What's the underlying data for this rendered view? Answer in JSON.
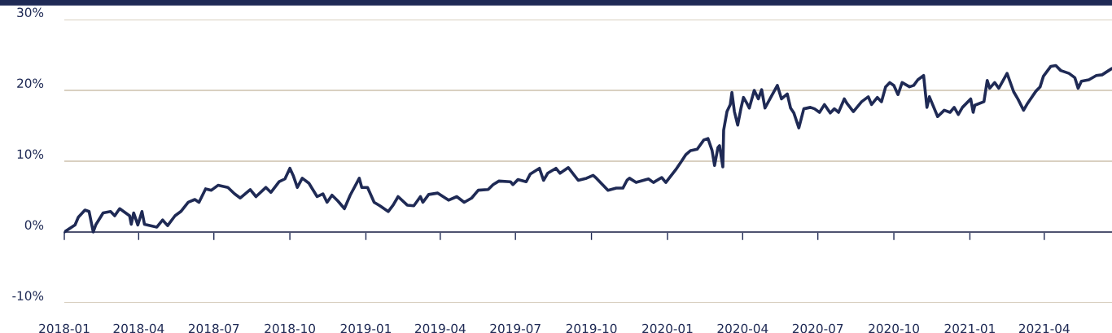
{
  "chart_data": {
    "type": "line",
    "x": [
      "2018-01-01",
      "2018-01-14",
      "2018-01-18",
      "2018-01-26",
      "2018-01-31",
      "2018-02-05",
      "2018-02-08",
      "2018-02-17",
      "2018-02-26",
      "2018-03-03",
      "2018-03-09",
      "2018-03-21",
      "2018-03-23",
      "2018-03-26",
      "2018-03-31",
      "2018-04-05",
      "2018-04-08",
      "2018-04-23",
      "2018-04-30",
      "2018-05-06",
      "2018-05-15",
      "2018-05-22",
      "2018-05-31",
      "2018-06-08",
      "2018-06-13",
      "2018-06-21",
      "2018-06-28",
      "2018-07-06",
      "2018-07-18",
      "2018-07-26",
      "2018-08-02",
      "2018-08-07",
      "2018-08-14",
      "2018-08-21",
      "2018-09-02",
      "2018-09-08",
      "2018-09-18",
      "2018-09-25",
      "2018-10-01",
      "2018-10-05",
      "2018-10-10",
      "2018-10-16",
      "2018-10-24",
      "2018-11-03",
      "2018-11-10",
      "2018-11-15",
      "2018-11-21",
      "2018-11-28",
      "2018-12-06",
      "2018-12-13",
      "2018-12-24",
      "2018-12-27",
      "2019-01-03",
      "2019-01-11",
      "2019-01-18",
      "2019-01-28",
      "2019-02-03",
      "2019-02-09",
      "2019-02-20",
      "2019-02-28",
      "2019-03-08",
      "2019-03-11",
      "2019-03-18",
      "2019-03-29",
      "2019-04-11",
      "2019-04-21",
      "2019-04-30",
      "2019-05-09",
      "2019-05-17",
      "2019-05-29",
      "2019-06-04",
      "2019-06-11",
      "2019-06-25",
      "2019-06-28",
      "2019-07-04",
      "2019-07-14",
      "2019-07-19",
      "2019-07-30",
      "2019-08-04",
      "2019-08-09",
      "2019-08-19",
      "2019-08-24",
      "2019-09-03",
      "2019-09-15",
      "2019-09-25",
      "2019-10-03",
      "2019-10-07",
      "2019-10-21",
      "2019-10-31",
      "2019-11-08",
      "2019-11-13",
      "2019-11-16",
      "2019-11-24",
      "2019-12-09",
      "2019-12-15",
      "2019-12-25",
      "2019-12-30",
      "2020-01-11",
      "2020-01-18",
      "2020-01-23",
      "2020-01-29",
      "2020-02-06",
      "2020-02-14",
      "2020-02-19",
      "2020-02-24",
      "2020-02-27",
      "2020-03-02",
      "2020-03-04",
      "2020-03-08",
      "2020-03-09",
      "2020-03-13",
      "2020-03-17",
      "2020-03-19",
      "2020-03-22",
      "2020-03-26",
      "2020-03-30",
      "2020-04-02",
      "2020-04-06",
      "2020-04-09",
      "2020-04-15",
      "2020-04-20",
      "2020-04-24",
      "2020-04-28",
      "2020-05-05",
      "2020-05-13",
      "2020-05-18",
      "2020-05-25",
      "2020-05-29",
      "2020-06-02",
      "2020-06-08",
      "2020-06-14",
      "2020-06-22",
      "2020-06-27",
      "2020-07-03",
      "2020-07-09",
      "2020-07-16",
      "2020-07-21",
      "2020-07-26",
      "2020-08-02",
      "2020-08-05",
      "2020-08-13",
      "2020-08-23",
      "2020-08-31",
      "2020-09-04",
      "2020-09-11",
      "2020-09-16",
      "2020-09-21",
      "2020-09-26",
      "2020-10-01",
      "2020-10-06",
      "2020-10-11",
      "2020-10-20",
      "2020-10-25",
      "2020-10-30",
      "2020-11-06",
      "2020-11-10",
      "2020-11-13",
      "2020-11-23",
      "2020-12-01",
      "2020-12-08",
      "2020-12-13",
      "2020-12-18",
      "2020-12-23",
      "2021-01-02",
      "2021-01-05",
      "2021-01-07",
      "2021-01-18",
      "2021-01-22",
      "2021-01-25",
      "2021-01-31",
      "2021-02-05",
      "2021-02-15",
      "2021-02-23",
      "2021-02-28",
      "2021-03-07",
      "2021-03-12",
      "2021-03-22",
      "2021-03-27",
      "2021-03-31",
      "2021-04-09",
      "2021-04-15",
      "2021-04-21",
      "2021-05-01",
      "2021-05-08",
      "2021-05-12",
      "2021-05-16",
      "2021-05-25",
      "2021-06-03",
      "2021-06-10",
      "2021-06-18",
      "2021-06-22"
    ],
    "series": [
      {
        "color": "#1f2a55",
        "values": [
          0.0,
          1.0,
          2.1,
          3.1,
          2.9,
          0.0,
          1.0,
          2.7,
          2.9,
          2.3,
          3.3,
          2.3,
          1.1,
          2.7,
          1.0,
          2.9,
          1.1,
          0.7,
          1.7,
          0.9,
          2.3,
          2.9,
          4.2,
          4.6,
          4.2,
          6.1,
          5.9,
          6.6,
          6.3,
          5.4,
          4.8,
          5.3,
          6.0,
          5.0,
          6.3,
          5.6,
          7.1,
          7.5,
          9.0,
          8.0,
          6.3,
          7.6,
          6.9,
          5.0,
          5.4,
          4.2,
          5.2,
          4.4,
          3.3,
          5.2,
          7.6,
          6.3,
          6.3,
          4.2,
          3.7,
          2.9,
          3.8,
          5.0,
          3.8,
          3.7,
          5.0,
          4.2,
          5.3,
          5.5,
          4.5,
          5.0,
          4.2,
          4.8,
          5.9,
          6.0,
          6.7,
          7.2,
          7.1,
          6.7,
          7.4,
          7.1,
          8.2,
          9.0,
          7.3,
          8.3,
          9.0,
          8.3,
          9.1,
          7.3,
          7.6,
          8.0,
          7.6,
          5.9,
          6.2,
          6.2,
          7.3,
          7.6,
          7.0,
          7.5,
          7.0,
          7.7,
          7.0,
          8.8,
          10.0,
          10.9,
          11.5,
          11.7,
          13.0,
          13.2,
          11.5,
          9.4,
          11.9,
          12.2,
          9.2,
          14.4,
          17.0,
          18.0,
          19.7,
          17.0,
          15.1,
          17.5,
          19.0,
          18.2,
          17.5,
          20.0,
          18.8,
          20.1,
          17.5,
          19.0,
          20.7,
          18.8,
          19.5,
          17.5,
          16.8,
          14.7,
          17.4,
          17.6,
          17.4,
          16.9,
          18.0,
          16.8,
          17.4,
          16.9,
          18.8,
          18.2,
          17.0,
          18.4,
          19.1,
          18.0,
          19.0,
          18.4,
          20.5,
          21.1,
          20.7,
          19.4,
          21.1,
          20.5,
          20.7,
          21.5,
          22.1,
          17.6,
          19.1,
          16.3,
          17.2,
          16.9,
          17.6,
          16.6,
          17.6,
          18.8,
          16.9,
          17.9,
          18.4,
          21.4,
          20.3,
          21.1,
          20.3,
          22.4,
          19.8,
          18.8,
          17.2,
          18.2,
          19.9,
          20.5,
          22.0,
          23.4,
          23.5,
          22.8,
          22.4,
          21.8,
          20.3,
          21.3,
          21.5,
          22.1,
          22.2,
          22.8,
          23.1
        ]
      }
    ],
    "xlim": [
      "2018-01-01",
      "2021-06-22"
    ],
    "xticks": [
      {
        "value": "2018-01-01",
        "label": "2018-01"
      },
      {
        "value": "2018-04-01",
        "label": "2018-04"
      },
      {
        "value": "2018-07-01",
        "label": "2018-07"
      },
      {
        "value": "2018-10-01",
        "label": "2018-10"
      },
      {
        "value": "2019-01-01",
        "label": "2019-01"
      },
      {
        "value": "2019-04-01",
        "label": "2019-04"
      },
      {
        "value": "2019-07-01",
        "label": "2019-07"
      },
      {
        "value": "2019-10-01",
        "label": "2019-10"
      },
      {
        "value": "2020-01-01",
        "label": "2020-01"
      },
      {
        "value": "2020-04-01",
        "label": "2020-04"
      },
      {
        "value": "2020-07-01",
        "label": "2020-07"
      },
      {
        "value": "2020-10-01",
        "label": "2020-10"
      },
      {
        "value": "2021-01-01",
        "label": "2021-01"
      },
      {
        "value": "2021-04-01",
        "label": "2021-04"
      }
    ],
    "ylim": [
      -10,
      30
    ],
    "yticks": [
      {
        "value": -10,
        "label": "-10%"
      },
      {
        "value": 0,
        "label": "0%"
      },
      {
        "value": 10,
        "label": "10%"
      },
      {
        "value": 20,
        "label": "20%"
      },
      {
        "value": 30,
        "label": "30%"
      }
    ],
    "grid": "y",
    "line_style": "solid"
  }
}
